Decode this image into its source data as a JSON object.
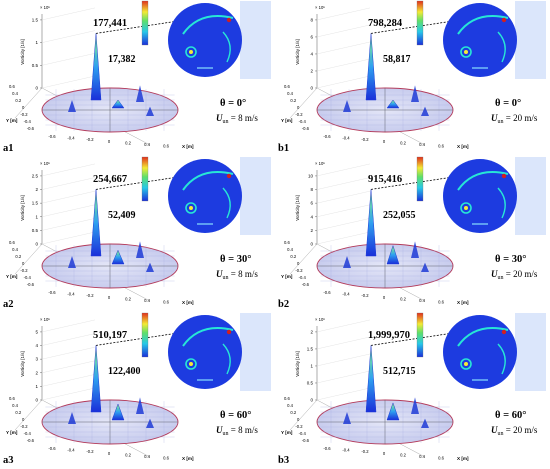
{
  "figure": {
    "axis_labels": {
      "vorticity": "Vorticity [1/s]",
      "x": "X [m]",
      "y": "Y [m]"
    },
    "tick_labels": {
      "x": [
        "-0.6",
        "-0.4",
        "-0.2",
        "0",
        "0.2",
        "0.4",
        "0.6"
      ],
      "y": [
        "-0.6",
        "-0.4",
        "-0.2",
        "0",
        "0.2",
        "0.4",
        "0.6"
      ]
    },
    "colors": {
      "blade_blue": "#1f3bd6",
      "vortex_cyan": "#27e6d6",
      "vortex_yellow": "#f5e83a",
      "vortex_red": "#d21f1f",
      "disc": "#cbd0ee"
    }
  },
  "chart_data": [
    {
      "type": "3d-surface",
      "panel": "a1",
      "angle_label": "θ = 0°",
      "speed_label": "= 8 m/s",
      "speed_symbol": "U",
      "speed_subscript": "un",
      "multiplier": "× 10⁵",
      "z_ticks": [
        "0",
        "0.5",
        "1",
        "1.5"
      ],
      "peak_max": {
        "label": "177,441",
        "value": 177441
      },
      "peak_secondary": {
        "label": "17,382",
        "value": 17382
      }
    },
    {
      "type": "3d-surface",
      "panel": "b1",
      "angle_label": "θ = 0°",
      "speed_label": "= 20 m/s",
      "speed_symbol": "U",
      "speed_subscript": "un",
      "multiplier": "× 10⁵",
      "z_ticks": [
        "0",
        "2",
        "4",
        "6",
        "8"
      ],
      "peak_max": {
        "label": "798,284",
        "value": 798284
      },
      "peak_secondary": {
        "label": "58,817",
        "value": 58817
      }
    },
    {
      "type": "3d-surface",
      "panel": "a2",
      "angle_label": "θ = 30°",
      "speed_label": "= 8 m/s",
      "speed_symbol": "U",
      "speed_subscript": "un",
      "multiplier": "× 10⁵",
      "z_ticks": [
        "0",
        "0.5",
        "1",
        "1.5",
        "2",
        "2.5"
      ],
      "peak_max": {
        "label": "254,667",
        "value": 254667
      },
      "peak_secondary": {
        "label": "52,409",
        "value": 52409
      }
    },
    {
      "type": "3d-surface",
      "panel": "b2",
      "angle_label": "θ = 30°",
      "speed_label": "= 20 m/s",
      "speed_symbol": "U",
      "speed_subscript": "un",
      "multiplier": "× 10⁵",
      "z_ticks": [
        "0",
        "2",
        "4",
        "6",
        "8",
        "10"
      ],
      "peak_max": {
        "label": "915,416",
        "value": 915416
      },
      "peak_secondary": {
        "label": "252,055",
        "value": 252055
      }
    },
    {
      "type": "3d-surface",
      "panel": "a3",
      "angle_label": "θ = 60°",
      "speed_label": "= 8 m/s",
      "speed_symbol": "U",
      "speed_subscript": "un",
      "multiplier": "× 10⁵",
      "z_ticks": [
        "0",
        "1",
        "2",
        "3",
        "4",
        "5"
      ],
      "peak_max": {
        "label": "510,197",
        "value": 510197
      },
      "peak_secondary": {
        "label": "122,400",
        "value": 122400
      }
    },
    {
      "type": "3d-surface",
      "panel": "b3",
      "angle_label": "θ = 60°",
      "speed_label": "= 20 m/s",
      "speed_symbol": "U",
      "speed_subscript": "un",
      "multiplier": "× 10⁶",
      "z_ticks": [
        "0",
        "0.5",
        "1",
        "1.5",
        "2"
      ],
      "peak_max": {
        "label": "1,999,970",
        "value": 1999970
      },
      "peak_secondary": {
        "label": "512,715",
        "value": 512715
      }
    }
  ]
}
